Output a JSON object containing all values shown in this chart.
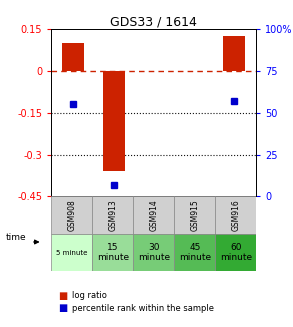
{
  "title": "GDS33 / 1614",
  "samples": [
    "GSM908",
    "GSM913",
    "GSM914",
    "GSM915",
    "GSM916"
  ],
  "time_labels": [
    "5 minute",
    "15\nminute",
    "30\nminute",
    "45\nminute",
    "60\nminute"
  ],
  "log_ratio": [
    0.1,
    -0.36,
    0.0,
    0.0,
    0.125
  ],
  "percentile_rank": [
    55,
    7,
    null,
    null,
    57
  ],
  "y_left_ticks": [
    0.15,
    0,
    -0.15,
    -0.3,
    -0.45
  ],
  "y_right_ticks": [
    100,
    75,
    50,
    25,
    0
  ],
  "ylim_left": [
    -0.45,
    0.15
  ],
  "ylim_right": [
    0,
    100
  ],
  "bar_color": "#cc2200",
  "dot_color": "#0000cc",
  "zero_line_color": "#cc2200",
  "dotted_line_color": "#111111",
  "sample_bg": "#d0d0d0",
  "time_colors": [
    "#ccffcc",
    "#99dd99",
    "#77cc77",
    "#55bb55",
    "#33aa33"
  ],
  "bar_width": 0.55,
  "title_fontsize": 9,
  "tick_fontsize": 7,
  "sample_fontsize": 5.5,
  "time_fontsize_small": 5,
  "time_fontsize_large": 6.5
}
